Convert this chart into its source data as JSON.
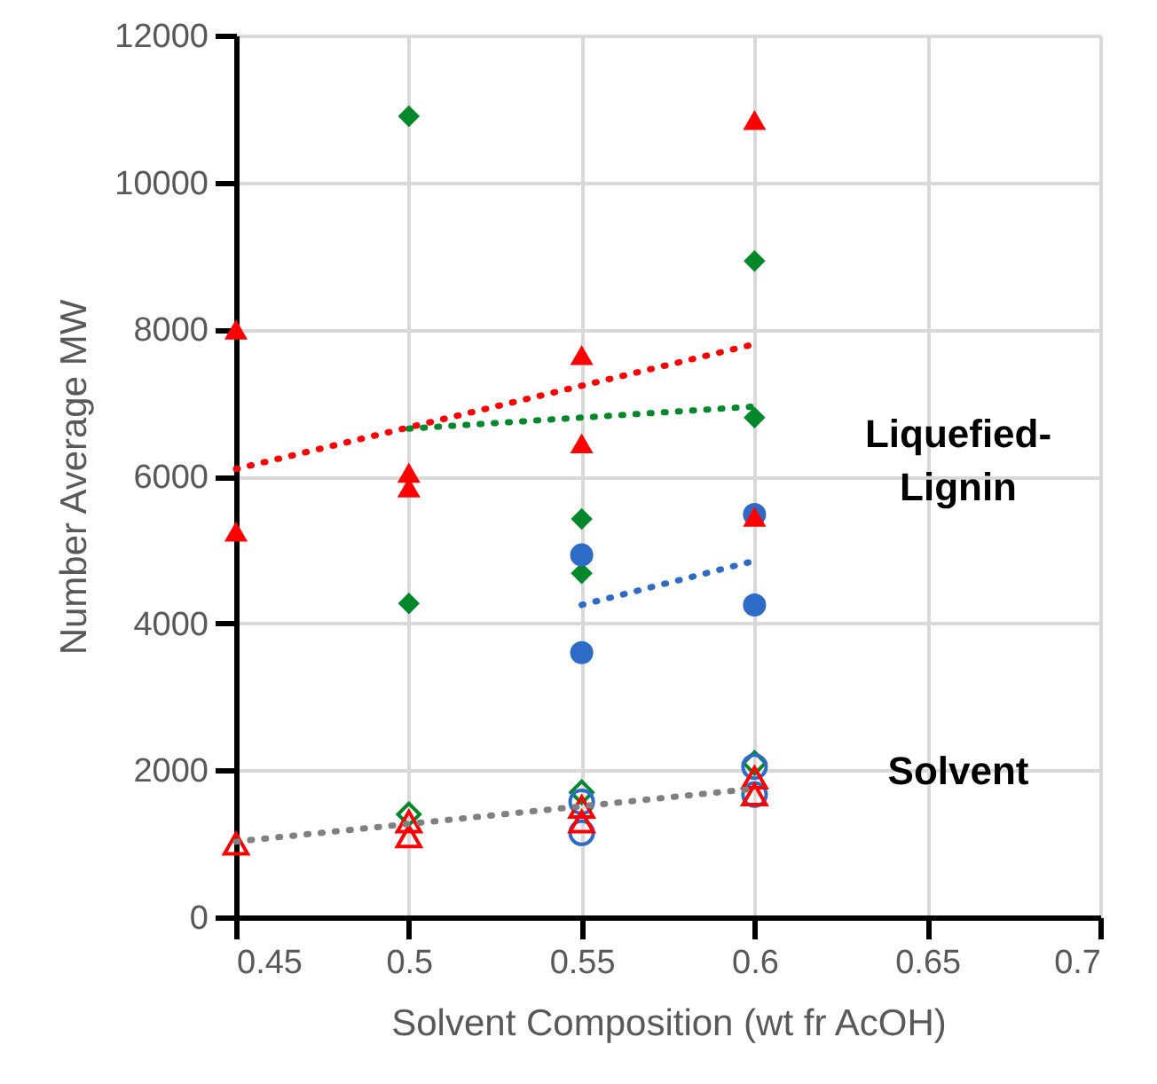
{
  "chart_data": {
    "type": "scatter",
    "xlabel": "Solvent Composition (wt fr AcOH)",
    "ylabel": "Number Average MW",
    "xlim": [
      0.45,
      0.7
    ],
    "xticks": [
      0.45,
      0.5,
      0.55,
      0.6,
      0.65,
      0.7
    ],
    "ylim": [
      0,
      12000
    ],
    "yticks": [
      0,
      2000,
      4000,
      6000,
      8000,
      10000,
      12000
    ],
    "grid": true,
    "annotations": [
      "Liquefied-\nLignin",
      "Solvent"
    ],
    "series": [
      {
        "type": "scatter",
        "marker": "diamond",
        "color": "#00882b",
        "x": [
          0.5,
          0.5,
          0.55,
          0.55,
          0.6,
          0.6
        ],
        "values": [
          10900,
          4270,
          5420,
          4680,
          8930,
          6800
        ]
      },
      {
        "type": "scatter",
        "marker": "circle",
        "color": "#2e6bc6",
        "x": [
          0.55,
          0.55,
          0.6,
          0.6
        ],
        "values": [
          4930,
          3600,
          5480,
          4250
        ]
      },
      {
        "type": "scatter",
        "marker": "triangle",
        "color": "#ff0000",
        "x": [
          0.45,
          0.45,
          0.5,
          0.5,
          0.55,
          0.55,
          0.6,
          0.6
        ],
        "values": [
          8000,
          5250,
          6050,
          5850,
          7650,
          6450,
          10850,
          5450
        ]
      },
      {
        "type": "scatter",
        "marker": "diamond",
        "color": "#00882b",
        "x": [
          0.5,
          0.55,
          0.6
        ],
        "values": [
          1400,
          1700,
          2100
        ]
      },
      {
        "type": "scatter",
        "marker": "circle",
        "color": "#2e6bc6",
        "x": [
          0.55,
          0.55,
          0.6,
          0.6
        ],
        "values": [
          1150,
          1570,
          2050,
          1670
        ]
      },
      {
        "type": "scatter",
        "marker": "triangle",
        "color": "#ff0000",
        "x": [
          0.45,
          0.5,
          0.5,
          0.55,
          0.55,
          0.6,
          0.6
        ],
        "values": [
          1000,
          1300,
          1100,
          1500,
          1300,
          1900,
          1670
        ]
      },
      {
        "type": "line",
        "marker": "none",
        "line_style": "dotted",
        "color": "#ff0000",
        "x": [
          0.45,
          0.6
        ],
        "values": [
          6100,
          7800
        ]
      },
      {
        "type": "line",
        "marker": "none",
        "line_style": "dotted",
        "color": "#00882b",
        "x": [
          0.5,
          0.6
        ],
        "values": [
          6650,
          6950
        ]
      },
      {
        "type": "line",
        "marker": "none",
        "line_style": "dotted",
        "color": "#2e6bc6",
        "x": [
          0.55,
          0.6
        ],
        "values": [
          4250,
          4850
        ]
      },
      {
        "type": "line",
        "marker": "none",
        "line_style": "dotted",
        "color": "#808080",
        "x": [
          0.45,
          0.6
        ],
        "values": [
          1030,
          1750
        ]
      }
    ]
  }
}
